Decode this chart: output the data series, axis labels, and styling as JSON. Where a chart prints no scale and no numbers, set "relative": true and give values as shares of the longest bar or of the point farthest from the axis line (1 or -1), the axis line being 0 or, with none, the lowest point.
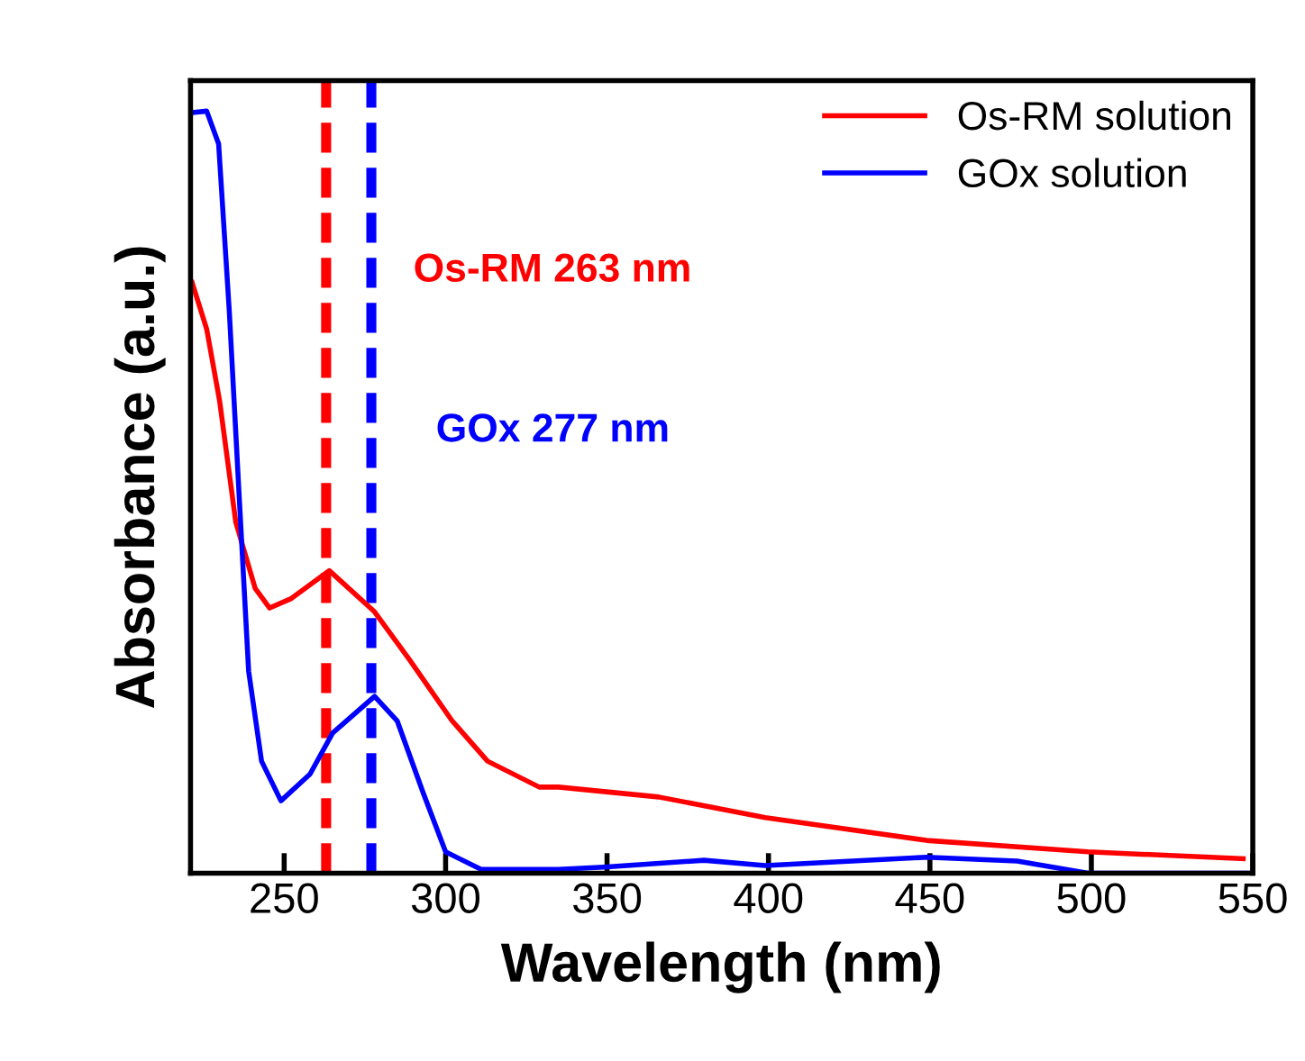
{
  "chart_data": {
    "type": "line",
    "xlabel": "Wavelength (nm)",
    "ylabel": "Absorbance (a.u.)",
    "relative": true,
    "xlim": [
      221,
      550
    ],
    "xticks": [
      250,
      300,
      350,
      400,
      450,
      500,
      550
    ],
    "legend": "top right",
    "grid": false,
    "line_style": "solid",
    "marker": "none",
    "series": [
      {
        "name": "Os-RM solution",
        "color": "#ff0000",
        "x": [
          221.5,
          226,
          230,
          235,
          241,
          245.5,
          252,
          264,
          278,
          289,
          302,
          313,
          329,
          335,
          366,
          399,
          449,
          499,
          547
        ],
        "values": [
          0.775,
          0.714,
          0.62,
          0.461,
          0.374,
          0.348,
          0.36,
          0.397,
          0.343,
          0.279,
          0.2,
          0.147,
          0.113,
          0.113,
          0.1,
          0.073,
          0.043,
          0.028,
          0.019
        ]
      },
      {
        "name": "GOx solution",
        "color": "#0000ff",
        "x": [
          221.5,
          226,
          229.7,
          233,
          236,
          239,
          243,
          249,
          258,
          265,
          278,
          285,
          293,
          300,
          311,
          335,
          349,
          380,
          399,
          449,
          477,
          499,
          550
        ],
        "values": [
          0.998,
          1,
          0.957,
          0.738,
          0.5,
          0.265,
          0.147,
          0.095,
          0.13,
          0.184,
          0.232,
          0.2,
          0.106,
          0.028,
          0.005,
          0.005,
          0.008,
          0.017,
          0.01,
          0.021,
          0.016,
          0,
          0
        ]
      }
    ],
    "ref_lines": [
      {
        "axis": "x",
        "value": 263,
        "label": "Os-RM 263 nm",
        "color": "#ff0000",
        "line_style": "dashed"
      },
      {
        "axis": "x",
        "value": 277,
        "label": "GOx 277 nm",
        "color": "#0000ff",
        "line_style": "dashed"
      }
    ]
  }
}
